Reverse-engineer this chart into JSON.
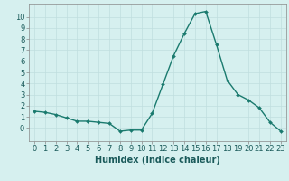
{
  "x": [
    0,
    1,
    2,
    3,
    4,
    5,
    6,
    7,
    8,
    9,
    10,
    11,
    12,
    13,
    14,
    15,
    16,
    17,
    18,
    19,
    20,
    21,
    22,
    23
  ],
  "y": [
    1.5,
    1.4,
    1.2,
    0.9,
    0.6,
    0.6,
    0.5,
    0.4,
    -0.3,
    -0.2,
    -0.2,
    1.3,
    3.9,
    6.5,
    8.5,
    10.3,
    10.5,
    7.5,
    4.3,
    3.0,
    2.5,
    1.8,
    0.5,
    -0.3
  ],
  "line_color": "#1a7a6e",
  "marker": "D",
  "marker_size": 2.0,
  "line_width": 1.0,
  "bg_color": "#d6f0ef",
  "grid_color": "#c0dede",
  "xlabel": "Humidex (Indice chaleur)",
  "xlabel_fontsize": 7,
  "xlabel_fontweight": "bold",
  "tick_fontsize": 6,
  "xlim": [
    -0.5,
    23.5
  ],
  "ylim": [
    -1.2,
    11.2
  ],
  "yticks": [
    0,
    1,
    2,
    3,
    4,
    5,
    6,
    7,
    8,
    9,
    10
  ],
  "xticks": [
    0,
    1,
    2,
    3,
    4,
    5,
    6,
    7,
    8,
    9,
    10,
    11,
    12,
    13,
    14,
    15,
    16,
    17,
    18,
    19,
    20,
    21,
    22,
    23
  ]
}
